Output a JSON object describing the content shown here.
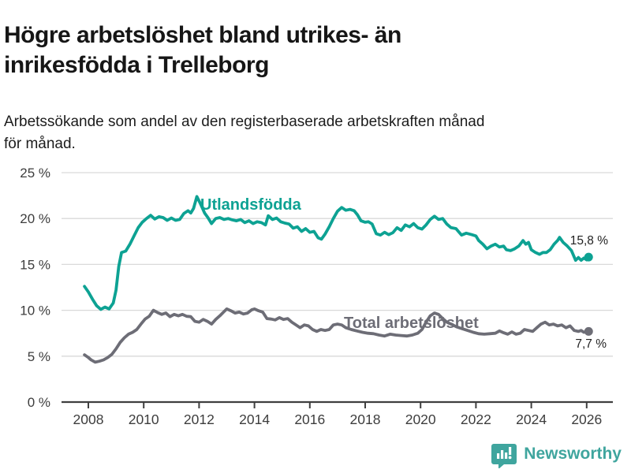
{
  "title": "Högre arbetslöshet bland utrikes- än inrikesfödda i Trelleborg",
  "title_lines": [
    "Högre arbetslöshet bland utrikes- än",
    "inrikesfödda i Trelleborg"
  ],
  "subtitle": "Arbetssökande som andel av den registerbaserade arbetskraften månad för månad.",
  "subtitle_lines": [
    "Arbetssökande som andel av den registerbaserade arbetskraften månad",
    "för månad."
  ],
  "footer": {
    "brand": "Newsworthy",
    "logo_icon": "bar-chart-speech-bubble-icon"
  },
  "colors": {
    "series_foreign": "#0da293",
    "series_total": "#6d6d76",
    "grid": "#d9d9d9",
    "axis": "#3f3f3f",
    "tick_text": "#3d3d3d",
    "value_label_text": "#222222",
    "logo": "#3fa59e",
    "background": "#ffffff"
  },
  "chart_data": {
    "type": "line",
    "title": "Högre arbetslöshet bland utrikes- än inrikesfödda i Trelleborg",
    "subtitle": "Arbetssökande som andel av den registerbaserade arbetskraften månad för månad.",
    "unit": "%",
    "x_axis": {
      "range": [
        2007.6,
        2026.9
      ],
      "ticks": [
        {
          "value": 2008,
          "label": "2008"
        },
        {
          "value": 2010,
          "label": "2010"
        },
        {
          "value": 2012,
          "label": "2012"
        },
        {
          "value": 2014,
          "label": "2014"
        },
        {
          "value": 2016,
          "label": "2016"
        },
        {
          "value": 2018,
          "label": "2018"
        },
        {
          "value": 2020,
          "label": "2020"
        },
        {
          "value": 2022,
          "label": "2022"
        },
        {
          "value": 2024,
          "label": "2024"
        },
        {
          "value": 2026,
          "label": "2026"
        }
      ]
    },
    "y_axis": {
      "range": [
        0,
        25
      ],
      "grid": true,
      "ticks": [
        {
          "value": 0,
          "label": "0 %"
        },
        {
          "value": 5,
          "label": "5 %"
        },
        {
          "value": 10,
          "label": "10 %"
        },
        {
          "value": 15,
          "label": "15 %"
        },
        {
          "value": 20,
          "label": "20 %"
        },
        {
          "value": 25,
          "label": "25 %"
        }
      ]
    },
    "series": [
      {
        "name": "Utlandsfödda",
        "color": "#0da293",
        "end_value": 15.8,
        "end_label": "15,8 %",
        "points": [
          [
            2007.86,
            12.6
          ],
          [
            2008.0,
            12.0
          ],
          [
            2008.15,
            11.2
          ],
          [
            2008.3,
            10.5
          ],
          [
            2008.45,
            10.1
          ],
          [
            2008.6,
            10.35
          ],
          [
            2008.75,
            10.15
          ],
          [
            2008.9,
            10.8
          ],
          [
            2009.0,
            12.2
          ],
          [
            2009.1,
            14.8
          ],
          [
            2009.2,
            16.3
          ],
          [
            2009.35,
            16.45
          ],
          [
            2009.5,
            17.2
          ],
          [
            2009.65,
            18.1
          ],
          [
            2009.8,
            19.0
          ],
          [
            2009.95,
            19.6
          ],
          [
            2010.1,
            20.0
          ],
          [
            2010.25,
            20.35
          ],
          [
            2010.4,
            19.95
          ],
          [
            2010.55,
            20.2
          ],
          [
            2010.7,
            20.1
          ],
          [
            2010.85,
            19.8
          ],
          [
            2011.0,
            20.05
          ],
          [
            2011.15,
            19.8
          ],
          [
            2011.3,
            19.9
          ],
          [
            2011.45,
            20.55
          ],
          [
            2011.6,
            20.85
          ],
          [
            2011.7,
            20.6
          ],
          [
            2011.8,
            21.1
          ],
          [
            2011.92,
            22.4
          ],
          [
            2012.05,
            21.6
          ],
          [
            2012.2,
            20.6
          ],
          [
            2012.32,
            20.1
          ],
          [
            2012.45,
            19.45
          ],
          [
            2012.6,
            20.0
          ],
          [
            2012.75,
            20.1
          ],
          [
            2012.9,
            19.9
          ],
          [
            2013.05,
            20.0
          ],
          [
            2013.2,
            19.85
          ],
          [
            2013.35,
            19.75
          ],
          [
            2013.5,
            19.9
          ],
          [
            2013.65,
            19.55
          ],
          [
            2013.8,
            19.75
          ],
          [
            2013.95,
            19.45
          ],
          [
            2014.1,
            19.65
          ],
          [
            2014.25,
            19.55
          ],
          [
            2014.4,
            19.3
          ],
          [
            2014.5,
            20.3
          ],
          [
            2014.65,
            19.9
          ],
          [
            2014.8,
            20.05
          ],
          [
            2014.95,
            19.65
          ],
          [
            2015.1,
            19.5
          ],
          [
            2015.25,
            19.4
          ],
          [
            2015.4,
            18.95
          ],
          [
            2015.55,
            19.1
          ],
          [
            2015.7,
            18.6
          ],
          [
            2015.85,
            18.9
          ],
          [
            2016.0,
            18.5
          ],
          [
            2016.15,
            18.6
          ],
          [
            2016.3,
            17.9
          ],
          [
            2016.42,
            17.75
          ],
          [
            2016.55,
            18.3
          ],
          [
            2016.7,
            19.1
          ],
          [
            2016.85,
            20.0
          ],
          [
            2017.0,
            20.8
          ],
          [
            2017.15,
            21.2
          ],
          [
            2017.3,
            20.9
          ],
          [
            2017.45,
            21.0
          ],
          [
            2017.6,
            20.85
          ],
          [
            2017.72,
            20.4
          ],
          [
            2017.85,
            19.75
          ],
          [
            2018.0,
            19.6
          ],
          [
            2018.12,
            19.65
          ],
          [
            2018.25,
            19.4
          ],
          [
            2018.4,
            18.35
          ],
          [
            2018.55,
            18.2
          ],
          [
            2018.7,
            18.5
          ],
          [
            2018.85,
            18.25
          ],
          [
            2019.0,
            18.45
          ],
          [
            2019.15,
            19.0
          ],
          [
            2019.3,
            18.7
          ],
          [
            2019.45,
            19.3
          ],
          [
            2019.6,
            19.1
          ],
          [
            2019.75,
            19.45
          ],
          [
            2019.9,
            19.0
          ],
          [
            2020.05,
            18.85
          ],
          [
            2020.2,
            19.3
          ],
          [
            2020.35,
            19.9
          ],
          [
            2020.5,
            20.25
          ],
          [
            2020.65,
            19.9
          ],
          [
            2020.8,
            20.0
          ],
          [
            2020.95,
            19.4
          ],
          [
            2021.1,
            19.0
          ],
          [
            2021.28,
            18.9
          ],
          [
            2021.48,
            18.2
          ],
          [
            2021.65,
            18.4
          ],
          [
            2021.84,
            18.25
          ],
          [
            2022.0,
            18.1
          ],
          [
            2022.1,
            17.6
          ],
          [
            2022.25,
            17.2
          ],
          [
            2022.4,
            16.7
          ],
          [
            2022.55,
            17.0
          ],
          [
            2022.7,
            17.2
          ],
          [
            2022.85,
            16.9
          ],
          [
            2023.0,
            17.0
          ],
          [
            2023.1,
            16.6
          ],
          [
            2023.25,
            16.5
          ],
          [
            2023.4,
            16.7
          ],
          [
            2023.55,
            17.0
          ],
          [
            2023.7,
            17.6
          ],
          [
            2023.8,
            17.2
          ],
          [
            2023.9,
            17.4
          ],
          [
            2024.0,
            16.6
          ],
          [
            2024.15,
            16.3
          ],
          [
            2024.3,
            16.1
          ],
          [
            2024.42,
            16.3
          ],
          [
            2024.55,
            16.3
          ],
          [
            2024.68,
            16.6
          ],
          [
            2024.82,
            17.2
          ],
          [
            2024.95,
            17.6
          ],
          [
            2025.02,
            17.95
          ],
          [
            2025.15,
            17.4
          ],
          [
            2025.3,
            17.0
          ],
          [
            2025.45,
            16.5
          ],
          [
            2025.6,
            15.45
          ],
          [
            2025.7,
            15.75
          ],
          [
            2025.8,
            15.45
          ],
          [
            2025.9,
            15.7
          ],
          [
            2026.0,
            15.5
          ],
          [
            2026.07,
            15.8
          ]
        ]
      },
      {
        "name": "Total arbetslöshet",
        "color": "#6d6d76",
        "end_value": 7.7,
        "end_label": "7,7 %",
        "points": [
          [
            2007.86,
            5.15
          ],
          [
            2008.0,
            4.85
          ],
          [
            2008.1,
            4.6
          ],
          [
            2008.25,
            4.35
          ],
          [
            2008.4,
            4.45
          ],
          [
            2008.55,
            4.6
          ],
          [
            2008.7,
            4.85
          ],
          [
            2008.85,
            5.2
          ],
          [
            2009.0,
            5.8
          ],
          [
            2009.15,
            6.5
          ],
          [
            2009.3,
            7.0
          ],
          [
            2009.45,
            7.4
          ],
          [
            2009.6,
            7.6
          ],
          [
            2009.75,
            7.9
          ],
          [
            2009.9,
            8.5
          ],
          [
            2010.05,
            9.05
          ],
          [
            2010.2,
            9.35
          ],
          [
            2010.35,
            10.0
          ],
          [
            2010.5,
            9.75
          ],
          [
            2010.65,
            9.55
          ],
          [
            2010.8,
            9.7
          ],
          [
            2010.95,
            9.3
          ],
          [
            2011.1,
            9.55
          ],
          [
            2011.25,
            9.4
          ],
          [
            2011.4,
            9.55
          ],
          [
            2011.55,
            9.35
          ],
          [
            2011.7,
            9.3
          ],
          [
            2011.85,
            8.8
          ],
          [
            2012.0,
            8.7
          ],
          [
            2012.15,
            9.0
          ],
          [
            2012.3,
            8.8
          ],
          [
            2012.45,
            8.5
          ],
          [
            2012.6,
            9.0
          ],
          [
            2012.75,
            9.4
          ],
          [
            2012.9,
            9.85
          ],
          [
            2013.0,
            10.15
          ],
          [
            2013.15,
            9.95
          ],
          [
            2013.3,
            9.7
          ],
          [
            2013.45,
            9.8
          ],
          [
            2013.6,
            9.6
          ],
          [
            2013.75,
            9.7
          ],
          [
            2013.9,
            10.05
          ],
          [
            2014.0,
            10.15
          ],
          [
            2014.15,
            9.95
          ],
          [
            2014.3,
            9.8
          ],
          [
            2014.45,
            9.1
          ],
          [
            2014.6,
            9.05
          ],
          [
            2014.75,
            8.95
          ],
          [
            2014.9,
            9.2
          ],
          [
            2015.05,
            9.0
          ],
          [
            2015.2,
            9.1
          ],
          [
            2015.35,
            8.7
          ],
          [
            2015.5,
            8.4
          ],
          [
            2015.65,
            8.1
          ],
          [
            2015.8,
            8.4
          ],
          [
            2015.95,
            8.3
          ],
          [
            2016.1,
            7.9
          ],
          [
            2016.25,
            7.7
          ],
          [
            2016.4,
            7.9
          ],
          [
            2016.55,
            7.8
          ],
          [
            2016.7,
            7.9
          ],
          [
            2016.85,
            8.4
          ],
          [
            2017.0,
            8.5
          ],
          [
            2017.15,
            8.4
          ],
          [
            2017.3,
            8.1
          ],
          [
            2017.5,
            7.9
          ],
          [
            2017.7,
            7.75
          ],
          [
            2017.9,
            7.6
          ],
          [
            2018.1,
            7.5
          ],
          [
            2018.3,
            7.45
          ],
          [
            2018.5,
            7.3
          ],
          [
            2018.7,
            7.2
          ],
          [
            2018.9,
            7.4
          ],
          [
            2019.1,
            7.3
          ],
          [
            2019.3,
            7.25
          ],
          [
            2019.5,
            7.2
          ],
          [
            2019.7,
            7.3
          ],
          [
            2019.9,
            7.5
          ],
          [
            2020.05,
            7.9
          ],
          [
            2020.2,
            8.7
          ],
          [
            2020.35,
            9.4
          ],
          [
            2020.5,
            9.7
          ],
          [
            2020.65,
            9.55
          ],
          [
            2020.8,
            9.1
          ],
          [
            2020.95,
            8.7
          ],
          [
            2021.1,
            8.5
          ],
          [
            2021.3,
            8.2
          ],
          [
            2021.5,
            8.0
          ],
          [
            2021.7,
            7.8
          ],
          [
            2021.9,
            7.6
          ],
          [
            2022.1,
            7.45
          ],
          [
            2022.3,
            7.4
          ],
          [
            2022.5,
            7.45
          ],
          [
            2022.7,
            7.5
          ],
          [
            2022.85,
            7.75
          ],
          [
            2023.0,
            7.55
          ],
          [
            2023.15,
            7.4
          ],
          [
            2023.3,
            7.65
          ],
          [
            2023.45,
            7.4
          ],
          [
            2023.6,
            7.5
          ],
          [
            2023.75,
            7.9
          ],
          [
            2023.9,
            7.8
          ],
          [
            2024.05,
            7.7
          ],
          [
            2024.2,
            8.1
          ],
          [
            2024.35,
            8.5
          ],
          [
            2024.5,
            8.7
          ],
          [
            2024.65,
            8.4
          ],
          [
            2024.8,
            8.5
          ],
          [
            2024.95,
            8.3
          ],
          [
            2025.1,
            8.4
          ],
          [
            2025.25,
            8.1
          ],
          [
            2025.4,
            8.3
          ],
          [
            2025.55,
            7.8
          ],
          [
            2025.7,
            7.7
          ],
          [
            2025.8,
            7.8
          ],
          [
            2025.9,
            7.6
          ],
          [
            2026.07,
            7.7
          ]
        ]
      }
    ],
    "legend_position": "inline-labels",
    "grid": true
  }
}
